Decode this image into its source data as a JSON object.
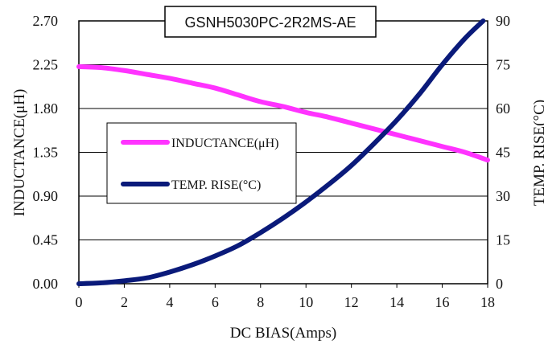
{
  "chart_data": {
    "type": "line",
    "title": "GSNH5030PC-2R2MS-AE",
    "xlabel": "DC BIAS(Amps)",
    "ylabel_left": "INDUCTANCE(μH)",
    "ylabel_right": "TEMP. RISE(°C)",
    "xlim": [
      0,
      18
    ],
    "ylim_left": [
      0,
      2.7
    ],
    "ylim_right": [
      0,
      90
    ],
    "x_ticks": [
      "0",
      "2",
      "4",
      "6",
      "8",
      "10",
      "12",
      "14",
      "16",
      "18"
    ],
    "y_left_ticks": [
      "0.00",
      "0.45",
      "0.90",
      "1.35",
      "1.80",
      "2.25",
      "2.70"
    ],
    "y_right_ticks": [
      "0",
      "15",
      "30",
      "45",
      "60",
      "75",
      "90"
    ],
    "grid": "horizontal",
    "legend_position": "center-left",
    "series": [
      {
        "name": "INDUCTANCE(μH)",
        "axis": "left",
        "color": "#ff33ff",
        "x": [
          0,
          1,
          2,
          3,
          4,
          5,
          6,
          7,
          8,
          9,
          10,
          11,
          12,
          13,
          14,
          15,
          16,
          17,
          18
        ],
        "y": [
          2.23,
          2.22,
          2.19,
          2.15,
          2.11,
          2.06,
          2.01,
          1.94,
          1.87,
          1.82,
          1.76,
          1.71,
          1.65,
          1.59,
          1.53,
          1.47,
          1.41,
          1.35,
          1.27
        ]
      },
      {
        "name": "TEMP. RISE(°C)",
        "axis": "right",
        "color": "#0a1a7a",
        "x": [
          0,
          1,
          2,
          3,
          4,
          5,
          6,
          7,
          8,
          9,
          10,
          11,
          12,
          13,
          14,
          15,
          16,
          17,
          17.8
        ],
        "y": [
          0,
          0.3,
          1,
          2,
          4,
          6.5,
          9.5,
          13,
          17.5,
          22.5,
          28,
          34,
          40.5,
          48,
          56,
          65,
          75,
          84,
          90
        ]
      }
    ]
  }
}
